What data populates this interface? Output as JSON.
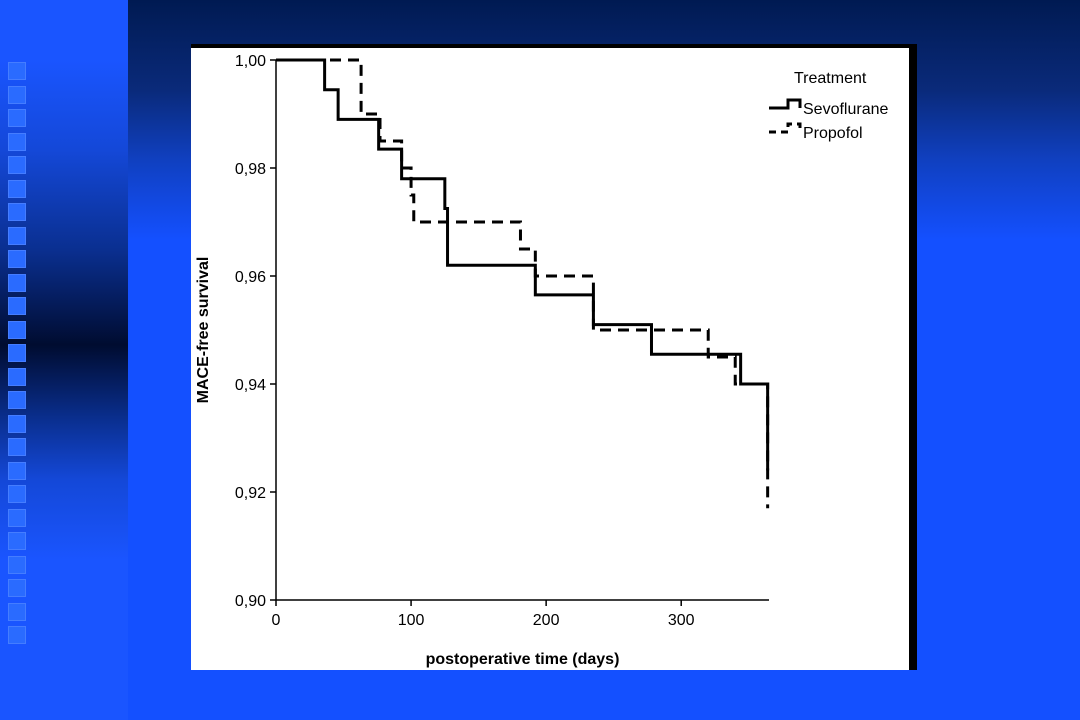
{
  "chart_data": {
    "type": "line",
    "subtype": "kaplan-meier-step",
    "xlabel": "postoperative time (days)",
    "ylabel": "MACE-free survival",
    "xlim": [
      0,
      365
    ],
    "ylim": [
      0.9,
      1.0
    ],
    "x_ticks": [
      0,
      100,
      200,
      300
    ],
    "x_tick_labels": [
      "0",
      "100",
      "200",
      "300"
    ],
    "y_ticks": [
      0.9,
      0.92,
      0.94,
      0.96,
      0.98,
      1.0
    ],
    "y_tick_labels": [
      "0,90",
      "0,92",
      "0,94",
      "0,96",
      "0,98",
      "1,00"
    ],
    "grid": false,
    "legend": {
      "title": "Treatment",
      "placement": "top-right"
    },
    "series": [
      {
        "name": "Sevoflurane",
        "line_style": "solid",
        "color": "#000000",
        "x": [
          0,
          36,
          46,
          76,
          93,
          125,
          127,
          192,
          235,
          278,
          344,
          364,
          364
        ],
        "y": [
          1.0,
          0.9945,
          0.989,
          0.9835,
          0.978,
          0.9725,
          0.962,
          0.9565,
          0.951,
          0.9455,
          0.94,
          0.94,
          0.924
        ]
      },
      {
        "name": "Propofol",
        "line_style": "dashed",
        "color": "#000000",
        "x": [
          0,
          63,
          77,
          93,
          100,
          102,
          181,
          192,
          235,
          320,
          340,
          364,
          364
        ],
        "y": [
          1.0,
          0.99,
          0.985,
          0.98,
          0.975,
          0.97,
          0.965,
          0.96,
          0.95,
          0.945,
          0.94,
          0.94,
          0.917
        ]
      }
    ]
  }
}
